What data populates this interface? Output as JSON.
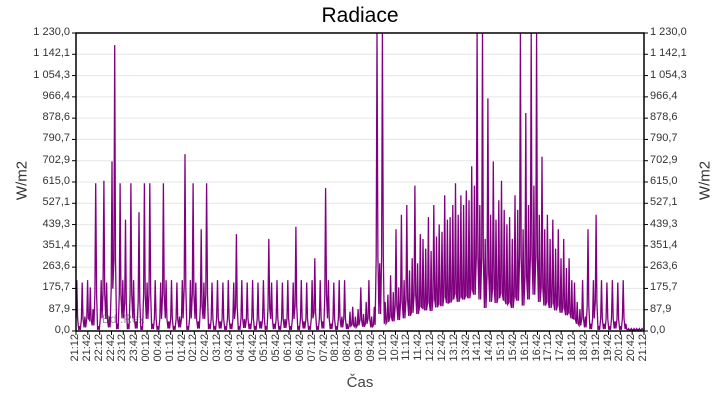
{
  "chart_data": {
    "type": "line",
    "title": "Radiace",
    "xlabel": "Čas",
    "ylabel": "W/m2",
    "ylabel_right": "W/m2",
    "ylim": [
      0,
      1230
    ],
    "y_ticks": [
      "0,0",
      "87,9",
      "175,7",
      "263,6",
      "351,4",
      "439,3",
      "527,1",
      "615,0",
      "702,9",
      "790,7",
      "878,6",
      "966,4",
      "1 054,3",
      "1 142,1",
      "1 230,0"
    ],
    "x_ticks": [
      "21:12",
      "21:42",
      "22:12",
      "22:42",
      "23:12",
      "23:42",
      "00:12",
      "00:42",
      "01:12",
      "01:42",
      "02:12",
      "02:42",
      "03:12",
      "03:42",
      "04:12",
      "04:42",
      "05:12",
      "05:42",
      "06:12",
      "06:42",
      "07:12",
      "07:42",
      "08:12",
      "08:42",
      "09:12",
      "09:42",
      "10:12",
      "10:42",
      "11:12",
      "11:42",
      "12:12",
      "12:42",
      "13:12",
      "13:42",
      "14:12",
      "14:42",
      "15:12",
      "15:42",
      "16:12",
      "16:42",
      "17:12",
      "17:42",
      "18:12",
      "18:42",
      "19:12",
      "19:42",
      "20:12",
      "20:42",
      "21:12"
    ],
    "grid": true,
    "legend": {
      "position": "bottom-left",
      "entries": [
        "Bd..Rex"
      ]
    },
    "series": [
      {
        "name": "Radiace",
        "color": "#800080",
        "x_start": "21:12",
        "x_step_minutes": 10,
        "values": [
          210,
          20,
          200,
          60,
          210,
          180,
          90,
          610,
          20,
          210,
          620,
          200,
          60,
          700,
          1180,
          30,
          610,
          210,
          460,
          30,
          610,
          210,
          40,
          490,
          20,
          610,
          200,
          610,
          30,
          210,
          20,
          200,
          610,
          210,
          40,
          210,
          20,
          200,
          60,
          210,
          730,
          20,
          210,
          610,
          200,
          40,
          420,
          200,
          610,
          30,
          200,
          20,
          210,
          40,
          200,
          20,
          210,
          30,
          200,
          400,
          20,
          210,
          50,
          200,
          30,
          210,
          20,
          200,
          40,
          210,
          20,
          380,
          200,
          30,
          210,
          20,
          200,
          50,
          210,
          20,
          200,
          430,
          20,
          210,
          40,
          200,
          20,
          210,
          300,
          20,
          210,
          40,
          590,
          210,
          30,
          200,
          20,
          210,
          60,
          210,
          30,
          80,
          100,
          60,
          90,
          180,
          70,
          120,
          210,
          60,
          100,
          1230,
          280,
          1230,
          120,
          150,
          230,
          160,
          420,
          180,
          480,
          210,
          520,
          250,
          300,
          600,
          280,
          400,
          380,
          340,
          470,
          330,
          520,
          390,
          440,
          410,
          560,
          460,
          470,
          520,
          610,
          480,
          560,
          520,
          580,
          540,
          680,
          600,
          1230,
          520,
          1230,
          380,
          960,
          480,
          700,
          460,
          540,
          620,
          500,
          440,
          470,
          380,
          560,
          500,
          1230,
          420,
          900,
          520,
          1230,
          600,
          1230,
          480,
          720,
          420,
          480,
          380,
          460,
          340,
          420,
          300,
          380,
          260,
          300,
          210,
          200,
          120,
          90,
          210,
          60,
          420,
          30,
          210,
          480,
          20,
          210,
          30,
          200,
          20,
          210,
          40,
          200,
          20,
          210,
          30,
          10,
          10,
          10,
          10,
          10,
          10
        ]
      }
    ]
  },
  "legend_ghost_text": "Bd..Rex"
}
